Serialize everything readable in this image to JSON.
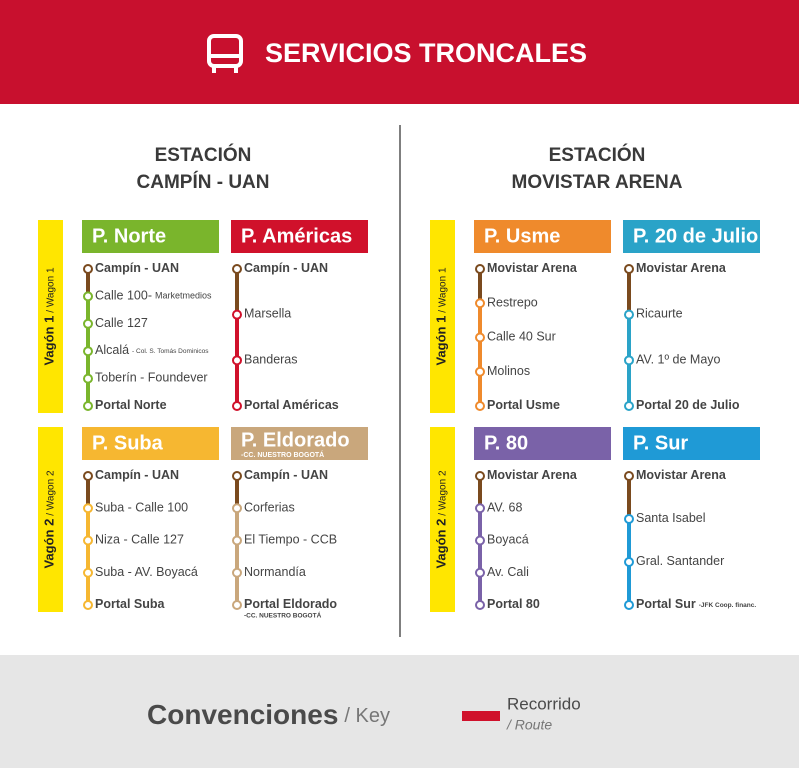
{
  "header": {
    "title": "SERVICIOS TRONCALES"
  },
  "stations": [
    {
      "title": [
        "ESTACIÓN",
        "CAMPÍN - UAN"
      ],
      "wagons": [
        {
          "label": "Vagón 1",
          "label_en": "/ Wagon 1",
          "routes": [
            {
              "name": "P. Norte",
              "color": "#7ab52c",
              "stops": [
                {
                  "name": "Campín - UAN"
                },
                {
                  "name": "Calle 100-",
                  "note": "Marketmedios"
                },
                {
                  "name": "Calle 127"
                },
                {
                  "name": "Alcalá",
                  "note": "- Col. S. Tomás Dominicos"
                },
                {
                  "name": "Toberín - Foundever"
                },
                {
                  "name": "Portal Norte"
                }
              ]
            },
            {
              "name": "P. Américas",
              "color": "#d0112b",
              "stops": [
                {
                  "name": "Campín - UAN"
                },
                {
                  "name": "Marsella"
                },
                {
                  "name": "Banderas"
                },
                {
                  "name": "Portal Américas"
                }
              ]
            }
          ]
        },
        {
          "label": "Vagón 2",
          "label_en": "/ Wagon 2",
          "routes": [
            {
              "name": "P. Suba",
              "color": "#f6b731",
              "stops": [
                {
                  "name": "Campín - UAN"
                },
                {
                  "name": "Suba - Calle 100"
                },
                {
                  "name": "Niza - Calle 127"
                },
                {
                  "name": "Suba - AV. Boyacá"
                },
                {
                  "name": "Portal Suba"
                }
              ]
            },
            {
              "name": "P. Eldorado",
              "subtitle": "-CC. NUESTRO BOGOTÁ",
              "color": "#c9a77c",
              "stops": [
                {
                  "name": "Campín - UAN"
                },
                {
                  "name": "Corferias"
                },
                {
                  "name": "El Tiempo - CCB"
                },
                {
                  "name": "Normandía"
                },
                {
                  "name": "Portal Eldorado",
                  "note": "-CC. NUESTRO BOGOTÁ"
                }
              ]
            }
          ]
        }
      ]
    },
    {
      "title": [
        "ESTACIÓN",
        "MOVISTAR ARENA"
      ],
      "wagons": [
        {
          "label": "Vagón 1",
          "label_en": "/ Wagon 1",
          "routes": [
            {
              "name": "P. Usme",
              "color": "#ef8a2c",
              "stops": [
                {
                  "name": "Movistar Arena"
                },
                {
                  "name": "Restrepo"
                },
                {
                  "name": "Calle 40 Sur"
                },
                {
                  "name": "Molinos"
                },
                {
                  "name": "Portal Usme"
                }
              ]
            },
            {
              "name": "P. 20 de Julio",
              "color": "#2aa3c8",
              "stops": [
                {
                  "name": "Movistar Arena"
                },
                {
                  "name": "Ricaurte"
                },
                {
                  "name": "AV. 1º de Mayo"
                },
                {
                  "name": "Portal 20 de Julio"
                }
              ]
            }
          ]
        },
        {
          "label": "Vagón 2",
          "label_en": "/ Wagon 2",
          "routes": [
            {
              "name": "P. 80",
              "color": "#7a62a8",
              "stops": [
                {
                  "name": "Movistar Arena"
                },
                {
                  "name": "AV. 68"
                },
                {
                  "name": "Boyacá"
                },
                {
                  "name": "Av. Cali"
                },
                {
                  "name": "Portal 80"
                }
              ]
            },
            {
              "name": "P. Sur",
              "color": "#1f9ad6",
              "stops": [
                {
                  "name": "Movistar Arena"
                },
                {
                  "name": "Santa Isabel"
                },
                {
                  "name": "Gral. Santander"
                },
                {
                  "name": "Portal Sur",
                  "note": "-JFK Coop. financ."
                }
              ]
            }
          ]
        }
      ]
    }
  ],
  "legend": {
    "title": "Convenciones",
    "title_en": "/ Key",
    "item": "Recorrido",
    "item_en": "/ Route"
  }
}
